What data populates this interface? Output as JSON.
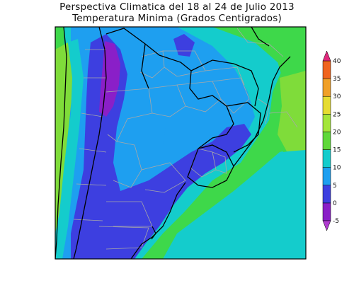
{
  "title": {
    "line1": "Perspectiva Climatica del 18 al 24 de Julio 2013",
    "line2": "Temperatura Minima (Grados Centigrados)"
  },
  "colorbar": {
    "levels": [
      {
        "label": "-5",
        "color": "#8a1fc8"
      },
      {
        "label": "0",
        "color": "#3d3fe0"
      },
      {
        "label": "5",
        "color": "#1e9ff0"
      },
      {
        "label": "10",
        "color": "#14cccc"
      },
      {
        "label": "15",
        "color": "#5fd83a"
      },
      {
        "label": "20",
        "color": "#a4e63a"
      },
      {
        "label": "25",
        "color": "#e6dc32"
      },
      {
        "label": "30",
        "color": "#f0a028"
      },
      {
        "label": "35",
        "color": "#f0641e"
      },
      {
        "label": "40",
        "color": "#e01e82"
      }
    ],
    "under_color": "#b03ad0",
    "over_color": "#e0287c"
  },
  "map_colors": {
    "ocean_green": "#3ed84a",
    "light_green": "#7fdc3a",
    "cyan": "#14cccc",
    "light_blue": "#1e9ff0",
    "blue": "#3d3fe0",
    "purple": "#8a1fc8",
    "border": "#a8a8a8",
    "boundary": "#000000"
  }
}
